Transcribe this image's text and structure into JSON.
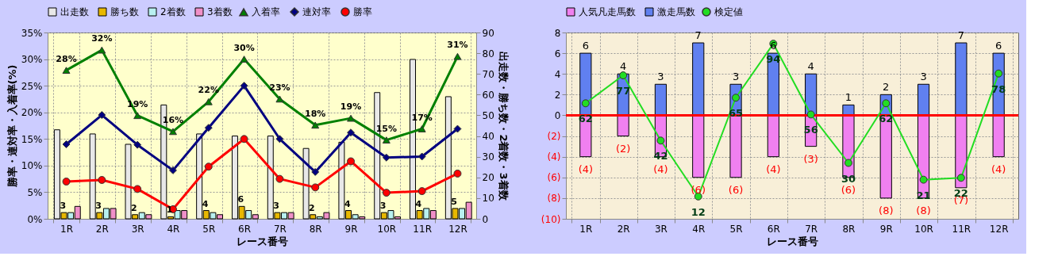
{
  "chart_data": [
    {
      "type": "bar",
      "categories": [
        "1R",
        "2R",
        "3R",
        "4R",
        "5R",
        "6R",
        "7R",
        "8R",
        "9R",
        "10R",
        "11R",
        "12R"
      ],
      "xlabel": "レース番号",
      "ylabel": "勝率・連対率・入着率(%)",
      "y2label": "出走数・勝ち数・2着数・3着数",
      "ylim": [
        0,
        35
      ],
      "yticks": [
        {
          "value": 0,
          "label": "0%"
        },
        {
          "value": 5,
          "label": "5%"
        },
        {
          "value": 10,
          "label": "10%"
        },
        {
          "value": 15,
          "label": "15%"
        },
        {
          "value": 20,
          "label": "20%"
        },
        {
          "value": 25,
          "label": "25%"
        },
        {
          "value": 30,
          "label": "30%"
        },
        {
          "value": 35,
          "label": "35%"
        }
      ],
      "y2lim": [
        0,
        90
      ],
      "y2ticks": [
        0,
        10,
        20,
        30,
        40,
        50,
        60,
        70,
        80,
        90
      ],
      "grid": true,
      "legend": "top",
      "series": [
        {
          "name": "出走数",
          "axis": "y2",
          "color": "#e8e8e8",
          "values": [
            43,
            41,
            36,
            55,
            41,
            40,
            40,
            34,
            37,
            61,
            77,
            59
          ]
        },
        {
          "name": "勝ち数",
          "axis": "y2",
          "color": "#e8b800",
          "values": [
            3,
            3,
            2,
            1,
            4,
            6,
            3,
            2,
            4,
            3,
            4,
            5
          ],
          "value_labels": [
            "3",
            "3",
            "2",
            "1",
            "4",
            "6",
            "3",
            "2",
            "4",
            "3",
            "4",
            "5"
          ]
        },
        {
          "name": "2着数",
          "axis": "y2",
          "color": "#b8f0f0",
          "values": [
            3,
            5,
            3,
            4,
            3,
            4,
            3,
            1,
            2,
            4,
            5,
            5
          ]
        },
        {
          "name": "3着数",
          "axis": "y2",
          "color": "#f090c8",
          "values": [
            6,
            5,
            2,
            4,
            2,
            2,
            3,
            3,
            1,
            1,
            4,
            8
          ]
        },
        {
          "name": "入着率",
          "type": "line",
          "axis": "y",
          "color": "#008000",
          "marker": "triangle",
          "values": [
            27.9,
            31.7,
            19.4,
            16.4,
            22.0,
            30.0,
            22.5,
            17.6,
            18.9,
            14.8,
            16.9,
            30.5
          ],
          "value_labels": [
            "28%",
            "32%",
            "19%",
            "16%",
            "22%",
            "30%",
            "23%",
            "18%",
            "19%",
            "15%",
            "17%",
            "31%"
          ]
        },
        {
          "name": "連対率",
          "type": "line",
          "axis": "y",
          "color": "#000080",
          "marker": "diamond",
          "values": [
            14.0,
            19.5,
            13.9,
            9.1,
            17.1,
            25.0,
            15.0,
            8.8,
            16.2,
            11.5,
            11.7,
            16.9
          ]
        },
        {
          "name": "勝率",
          "type": "line",
          "axis": "y",
          "color": "#ff0000",
          "marker": "circle",
          "values": [
            7.0,
            7.3,
            5.6,
            1.8,
            9.8,
            15.0,
            7.5,
            5.9,
            10.8,
            4.9,
            5.2,
            8.5
          ]
        }
      ]
    },
    {
      "type": "bar",
      "categories": [
        "1R",
        "2R",
        "3R",
        "4R",
        "5R",
        "6R",
        "7R",
        "8R",
        "9R",
        "10R",
        "11R",
        "12R"
      ],
      "xlabel": "レース番号",
      "stacked": true,
      "ylim": [
        -10,
        8
      ],
      "yticks": [
        {
          "value": -10,
          "label": "(10)"
        },
        {
          "value": -8,
          "label": "(8)"
        },
        {
          "value": -6,
          "label": "(6)"
        },
        {
          "value": -4,
          "label": "(4)"
        },
        {
          "value": -2,
          "label": "(2)"
        },
        0,
        2,
        4,
        6,
        8
      ],
      "y2lim": [
        0,
        100
      ],
      "grid": true,
      "legend": "top",
      "ref_lines": [
        {
          "axis": "y",
          "value": 0,
          "color": "#ff0000"
        }
      ],
      "series": [
        {
          "name": "人気凡走馬数",
          "axis": "y",
          "color": "#f080f0",
          "values": [
            -4,
            -2,
            -4,
            -6,
            -6,
            -4,
            -3,
            -6,
            -8,
            -8,
            -7,
            -4
          ],
          "value_labels": [
            "(4)",
            "(2)",
            "(4)",
            "(6)",
            "(6)",
            "(4)",
            "(3)",
            "(6)",
            "(8)",
            "(8)",
            "(7)",
            "(4)"
          ]
        },
        {
          "name": "激走馬数",
          "axis": "y",
          "color": "#6080f0",
          "values": [
            6,
            4,
            3,
            7,
            3,
            6,
            4,
            1,
            2,
            3,
            7,
            6
          ],
          "value_labels": [
            "6",
            "4",
            "3",
            "7",
            "3",
            "6",
            "4",
            "1",
            "2",
            "3",
            "7",
            "6"
          ]
        },
        {
          "name": "検定値",
          "type": "line",
          "axis": "y2",
          "color": "#22dd22",
          "marker": "circle",
          "values": [
            62,
            77,
            42,
            12,
            65,
            94,
            56,
            30,
            62,
            21,
            22,
            78
          ],
          "value_labels": [
            "62",
            "77",
            "42",
            "12",
            "65",
            "94",
            "56",
            "30",
            "62",
            "21",
            "22",
            "78"
          ]
        }
      ]
    }
  ]
}
